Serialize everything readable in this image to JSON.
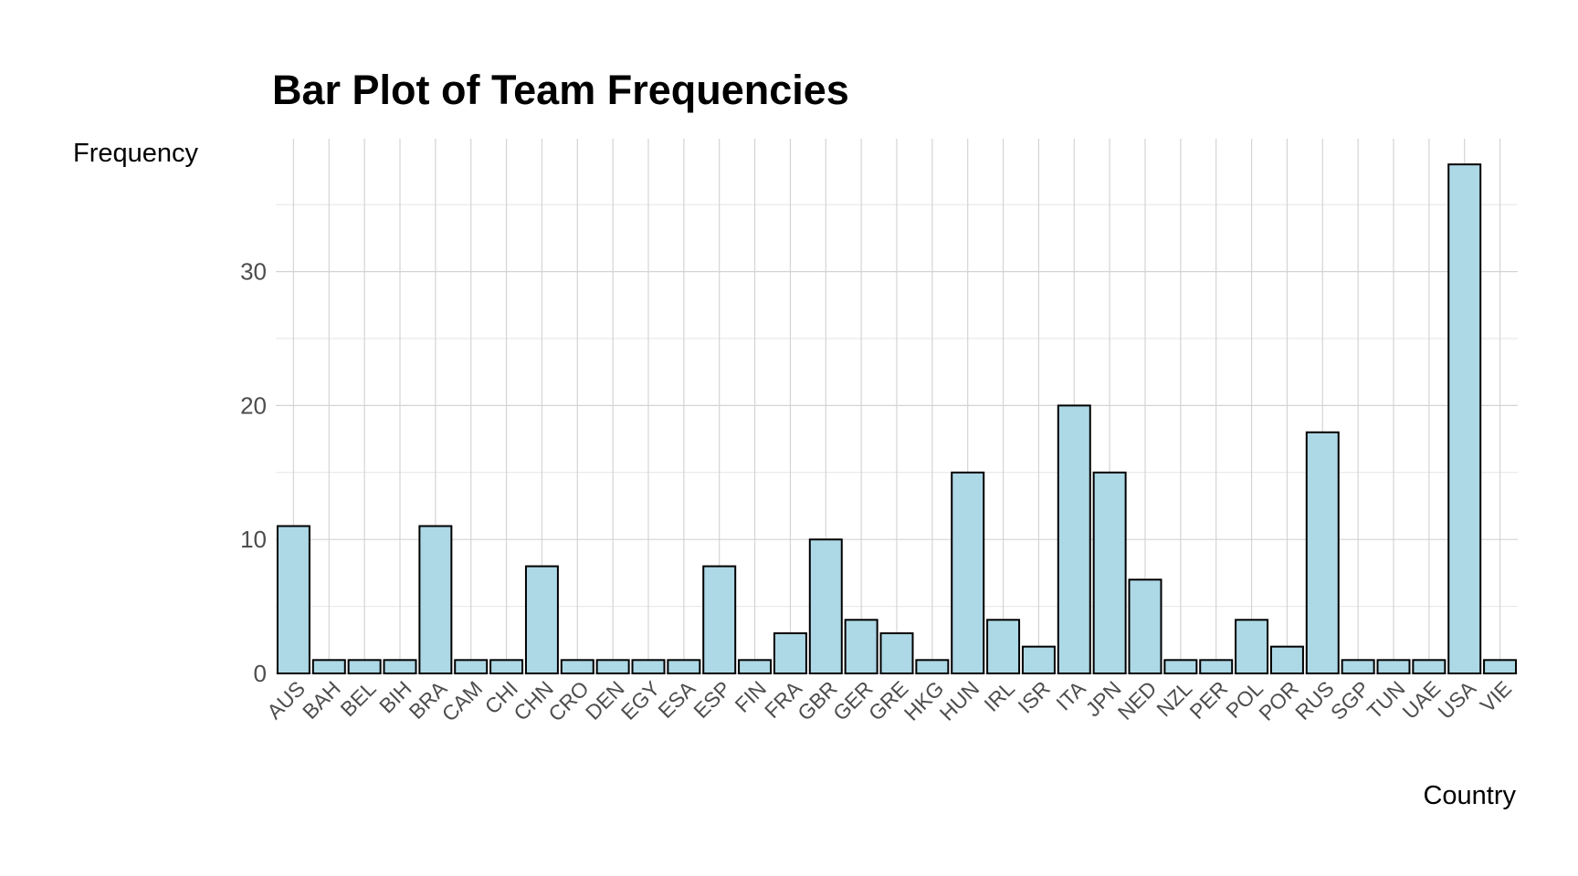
{
  "chart_data": {
    "type": "bar",
    "title": "Bar Plot of Team Frequencies",
    "xlabel": "Country",
    "ylabel": "Frequency",
    "categories": [
      "AUS",
      "BAH",
      "BEL",
      "BIH",
      "BRA",
      "CAM",
      "CHI",
      "CHN",
      "CRO",
      "DEN",
      "EGY",
      "ESA",
      "ESP",
      "FIN",
      "FRA",
      "GBR",
      "GER",
      "GRE",
      "HKG",
      "HUN",
      "IRL",
      "ISR",
      "ITA",
      "JPN",
      "NED",
      "NZL",
      "PER",
      "POL",
      "POR",
      "RUS",
      "SGP",
      "TUN",
      "UAE",
      "USA",
      "VIE"
    ],
    "values": [
      11,
      1,
      1,
      1,
      11,
      1,
      1,
      8,
      1,
      1,
      1,
      1,
      8,
      1,
      3,
      10,
      4,
      3,
      1,
      15,
      4,
      2,
      20,
      15,
      7,
      1,
      1,
      4,
      2,
      18,
      1,
      1,
      1,
      38,
      1
    ],
    "yticks": [
      0,
      10,
      20,
      30
    ],
    "ylim": [
      0,
      40
    ],
    "grid": true,
    "colors": {
      "bar_fill": "#add8e6",
      "bar_stroke": "#000000"
    }
  }
}
